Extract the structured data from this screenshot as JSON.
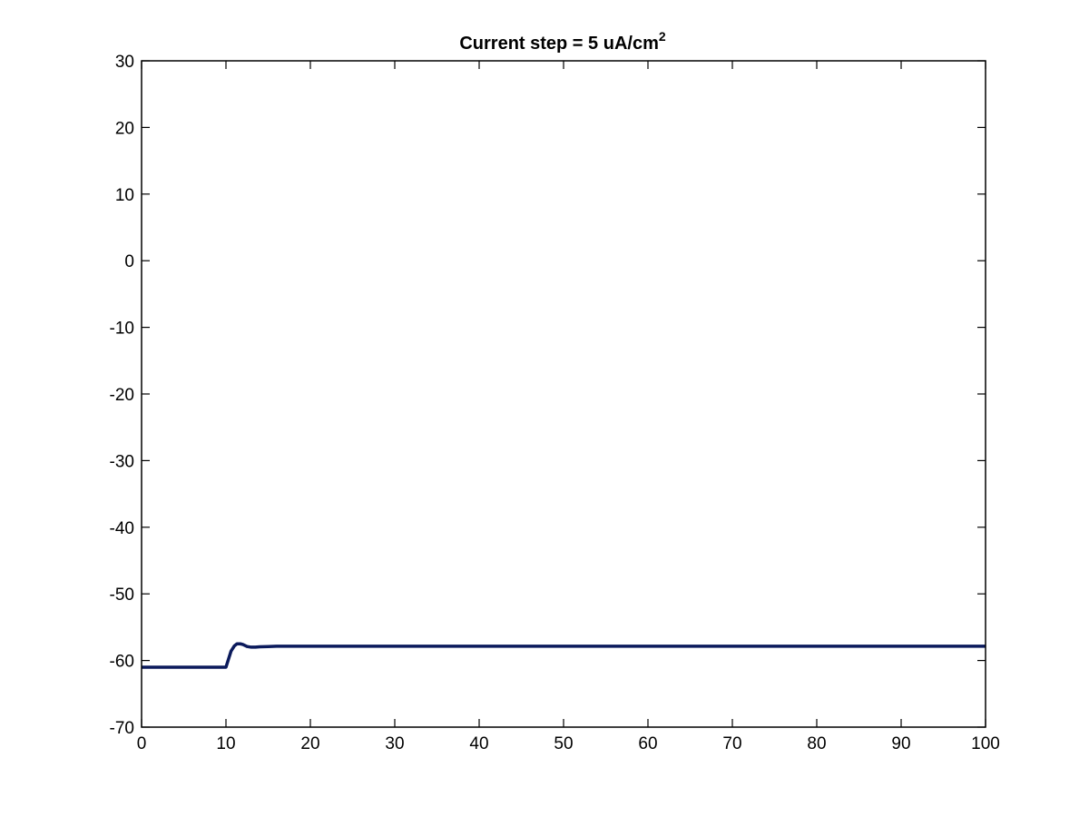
{
  "chart_data": {
    "type": "line",
    "title": "Current step = 5 uA/cm",
    "title_superscript": "2",
    "xlabel": "",
    "ylabel": "",
    "xlim": [
      0,
      100
    ],
    "ylim": [
      -70,
      30
    ],
    "xticks": [
      0,
      10,
      20,
      30,
      40,
      50,
      60,
      70,
      80,
      90,
      100
    ],
    "yticks": [
      30,
      20,
      10,
      0,
      -10,
      -20,
      -30,
      -40,
      -50,
      -60,
      -70
    ],
    "xtick_labels": [
      "0",
      "10",
      "20",
      "30",
      "40",
      "50",
      "60",
      "70",
      "80",
      "90",
      "100"
    ],
    "ytick_labels": [
      "30",
      "20",
      "10",
      "0",
      "-10",
      "-20",
      "-30",
      "-40",
      "-50",
      "-60",
      "-70"
    ],
    "grid": false,
    "legend": "none",
    "series": [
      {
        "color": "#0b1a5c",
        "x": [
          0,
          10,
          10.3,
          10.6,
          11,
          11.3,
          11.7,
          12.0,
          12.5,
          13.0,
          13.5,
          14.0,
          15.0,
          16.0,
          20,
          40,
          60,
          80,
          100
        ],
        "y": [
          -61,
          -61,
          -59.8,
          -58.6,
          -57.8,
          -57.5,
          -57.5,
          -57.6,
          -57.9,
          -58.0,
          -58.0,
          -57.95,
          -57.9,
          -57.85,
          -57.85,
          -57.85,
          -57.85,
          -57.85,
          -57.85
        ]
      }
    ]
  }
}
